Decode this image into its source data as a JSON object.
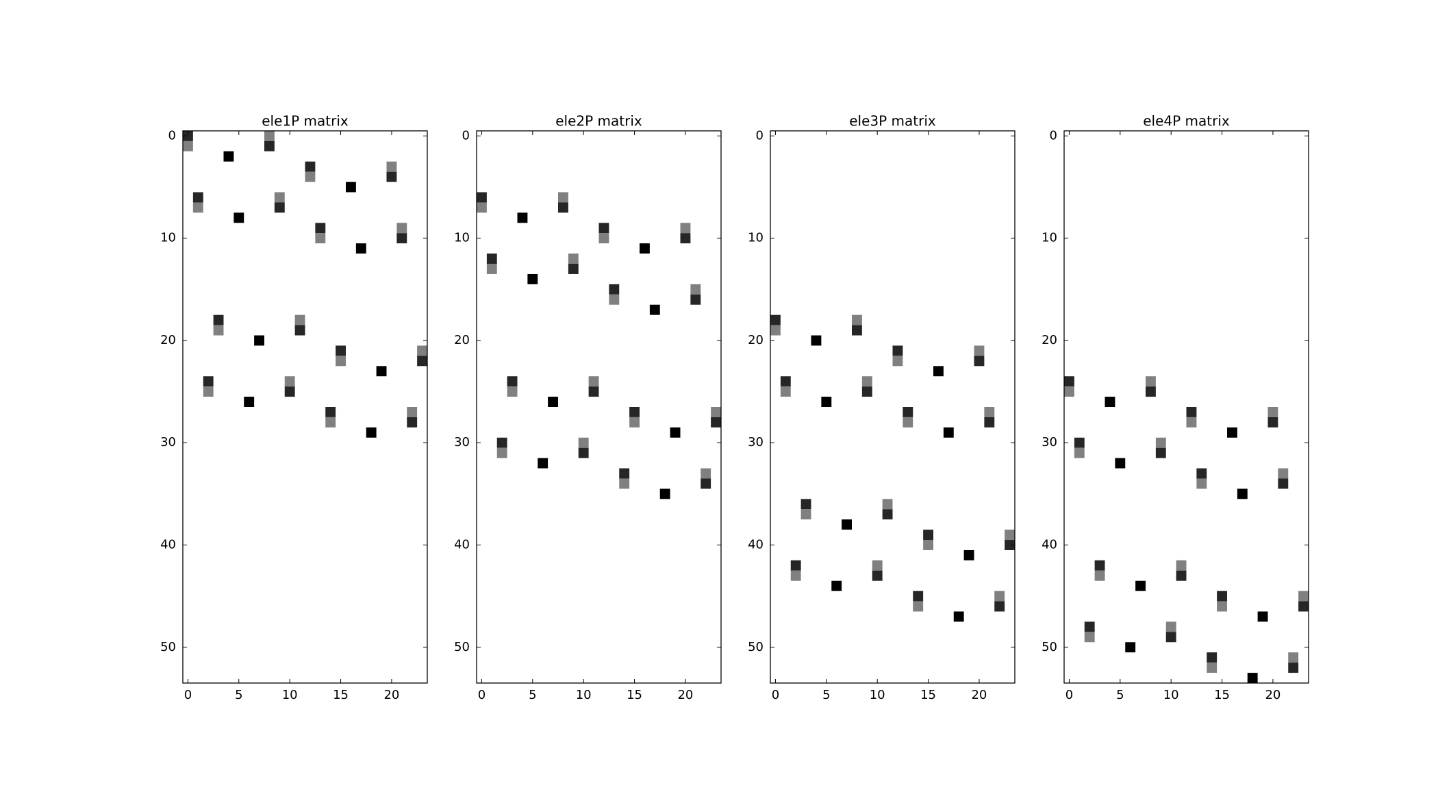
{
  "chart_data": [
    {
      "type": "heatmap",
      "title": "ele1P matrix",
      "colormap": "gray_r",
      "xlim": [
        -0.5,
        23.5
      ],
      "ylim": [
        53.5,
        -0.5
      ],
      "xticks": [
        0,
        5,
        10,
        15,
        20
      ],
      "yticks": [
        0,
        10,
        20,
        30,
        40,
        50
      ],
      "cells": [
        [
          0,
          0,
          0.85
        ],
        [
          0,
          1,
          0.5
        ],
        [
          1,
          6,
          0.85
        ],
        [
          1,
          7,
          0.5
        ],
        [
          2,
          24,
          0.85
        ],
        [
          2,
          25,
          0.5
        ],
        [
          3,
          18,
          0.85
        ],
        [
          3,
          19,
          0.5
        ],
        [
          4,
          2,
          1
        ],
        [
          5,
          8,
          1
        ],
        [
          6,
          26,
          1
        ],
        [
          7,
          20,
          1
        ],
        [
          8,
          0,
          0.5
        ],
        [
          8,
          1,
          0.85
        ],
        [
          9,
          6,
          0.5
        ],
        [
          9,
          7,
          0.85
        ],
        [
          10,
          24,
          0.5
        ],
        [
          10,
          25,
          0.85
        ],
        [
          11,
          18,
          0.5
        ],
        [
          11,
          19,
          0.85
        ],
        [
          12,
          3,
          0.85
        ],
        [
          12,
          4,
          0.5
        ],
        [
          13,
          9,
          0.85
        ],
        [
          13,
          10,
          0.5
        ],
        [
          14,
          27,
          0.85
        ],
        [
          14,
          28,
          0.5
        ],
        [
          15,
          21,
          0.85
        ],
        [
          15,
          22,
          0.5
        ],
        [
          16,
          5,
          1
        ],
        [
          17,
          11,
          1
        ],
        [
          18,
          29,
          1
        ],
        [
          19,
          23,
          1
        ],
        [
          20,
          3,
          0.5
        ],
        [
          20,
          4,
          0.85
        ],
        [
          21,
          9,
          0.5
        ],
        [
          21,
          10,
          0.85
        ],
        [
          22,
          27,
          0.5
        ],
        [
          22,
          28,
          0.85
        ],
        [
          23,
          21,
          0.5
        ],
        [
          23,
          22,
          0.85
        ]
      ]
    },
    {
      "type": "heatmap",
      "title": "ele2P matrix",
      "colormap": "gray_r",
      "xlim": [
        -0.5,
        23.5
      ],
      "ylim": [
        53.5,
        -0.5
      ],
      "xticks": [
        0,
        5,
        10,
        15,
        20
      ],
      "yticks": [
        0,
        10,
        20,
        30,
        40,
        50
      ],
      "cells": [
        [
          0,
          6,
          0.85
        ],
        [
          0,
          7,
          0.5
        ],
        [
          1,
          12,
          0.85
        ],
        [
          1,
          13,
          0.5
        ],
        [
          2,
          30,
          0.85
        ],
        [
          2,
          31,
          0.5
        ],
        [
          3,
          24,
          0.85
        ],
        [
          3,
          25,
          0.5
        ],
        [
          4,
          8,
          1
        ],
        [
          5,
          14,
          1
        ],
        [
          6,
          32,
          1
        ],
        [
          7,
          26,
          1
        ],
        [
          8,
          6,
          0.5
        ],
        [
          8,
          7,
          0.85
        ],
        [
          9,
          12,
          0.5
        ],
        [
          9,
          13,
          0.85
        ],
        [
          10,
          30,
          0.5
        ],
        [
          10,
          31,
          0.85
        ],
        [
          11,
          24,
          0.5
        ],
        [
          11,
          25,
          0.85
        ],
        [
          12,
          9,
          0.85
        ],
        [
          12,
          10,
          0.5
        ],
        [
          13,
          15,
          0.85
        ],
        [
          13,
          16,
          0.5
        ],
        [
          14,
          33,
          0.85
        ],
        [
          14,
          34,
          0.5
        ],
        [
          15,
          27,
          0.85
        ],
        [
          15,
          28,
          0.5
        ],
        [
          16,
          11,
          1
        ],
        [
          17,
          17,
          1
        ],
        [
          18,
          35,
          1
        ],
        [
          19,
          29,
          1
        ],
        [
          20,
          9,
          0.5
        ],
        [
          20,
          10,
          0.85
        ],
        [
          21,
          15,
          0.5
        ],
        [
          21,
          16,
          0.85
        ],
        [
          22,
          33,
          0.5
        ],
        [
          22,
          34,
          0.85
        ],
        [
          23,
          27,
          0.5
        ],
        [
          23,
          28,
          0.85
        ]
      ]
    },
    {
      "type": "heatmap",
      "title": "ele3P matrix",
      "colormap": "gray_r",
      "xlim": [
        -0.5,
        23.5
      ],
      "ylim": [
        53.5,
        -0.5
      ],
      "xticks": [
        0,
        5,
        10,
        15,
        20
      ],
      "yticks": [
        0,
        10,
        20,
        30,
        40,
        50
      ],
      "cells": [
        [
          0,
          18,
          0.85
        ],
        [
          0,
          19,
          0.5
        ],
        [
          1,
          24,
          0.85
        ],
        [
          1,
          25,
          0.5
        ],
        [
          2,
          42,
          0.85
        ],
        [
          2,
          43,
          0.5
        ],
        [
          3,
          36,
          0.85
        ],
        [
          3,
          37,
          0.5
        ],
        [
          4,
          20,
          1
        ],
        [
          5,
          26,
          1
        ],
        [
          6,
          44,
          1
        ],
        [
          7,
          38,
          1
        ],
        [
          8,
          18,
          0.5
        ],
        [
          8,
          19,
          0.85
        ],
        [
          9,
          24,
          0.5
        ],
        [
          9,
          25,
          0.85
        ],
        [
          10,
          42,
          0.5
        ],
        [
          10,
          43,
          0.85
        ],
        [
          11,
          36,
          0.5
        ],
        [
          11,
          37,
          0.85
        ],
        [
          12,
          21,
          0.85
        ],
        [
          12,
          22,
          0.5
        ],
        [
          13,
          27,
          0.85
        ],
        [
          13,
          28,
          0.5
        ],
        [
          14,
          45,
          0.85
        ],
        [
          14,
          46,
          0.5
        ],
        [
          15,
          39,
          0.85
        ],
        [
          15,
          40,
          0.5
        ],
        [
          16,
          23,
          1
        ],
        [
          17,
          29,
          1
        ],
        [
          18,
          47,
          1
        ],
        [
          19,
          41,
          1
        ],
        [
          20,
          21,
          0.5
        ],
        [
          20,
          22,
          0.85
        ],
        [
          21,
          27,
          0.5
        ],
        [
          21,
          28,
          0.85
        ],
        [
          22,
          45,
          0.5
        ],
        [
          22,
          46,
          0.85
        ],
        [
          23,
          39,
          0.5
        ],
        [
          23,
          40,
          0.85
        ]
      ]
    },
    {
      "type": "heatmap",
      "title": "ele4P matrix",
      "colormap": "gray_r",
      "xlim": [
        -0.5,
        23.5
      ],
      "ylim": [
        53.5,
        -0.5
      ],
      "xticks": [
        0,
        5,
        10,
        15,
        20
      ],
      "yticks": [
        0,
        10,
        20,
        30,
        40,
        50
      ],
      "cells": [
        [
          0,
          24,
          0.85
        ],
        [
          0,
          25,
          0.5
        ],
        [
          1,
          30,
          0.85
        ],
        [
          1,
          31,
          0.5
        ],
        [
          2,
          48,
          0.85
        ],
        [
          2,
          49,
          0.5
        ],
        [
          3,
          42,
          0.85
        ],
        [
          3,
          43,
          0.5
        ],
        [
          4,
          26,
          1
        ],
        [
          5,
          32,
          1
        ],
        [
          6,
          50,
          1
        ],
        [
          7,
          44,
          1
        ],
        [
          8,
          24,
          0.5
        ],
        [
          8,
          25,
          0.85
        ],
        [
          9,
          30,
          0.5
        ],
        [
          9,
          31,
          0.85
        ],
        [
          10,
          48,
          0.5
        ],
        [
          10,
          49,
          0.85
        ],
        [
          11,
          42,
          0.5
        ],
        [
          11,
          43,
          0.85
        ],
        [
          12,
          27,
          0.85
        ],
        [
          12,
          28,
          0.5
        ],
        [
          13,
          33,
          0.85
        ],
        [
          13,
          34,
          0.5
        ],
        [
          14,
          51,
          0.85
        ],
        [
          14,
          52,
          0.5
        ],
        [
          15,
          45,
          0.85
        ],
        [
          15,
          46,
          0.5
        ],
        [
          16,
          29,
          1
        ],
        [
          17,
          35,
          1
        ],
        [
          18,
          53,
          1
        ],
        [
          19,
          47,
          1
        ],
        [
          20,
          27,
          0.5
        ],
        [
          20,
          28,
          0.85
        ],
        [
          21,
          33,
          0.5
        ],
        [
          21,
          34,
          0.85
        ],
        [
          22,
          51,
          0.5
        ],
        [
          22,
          52,
          0.85
        ],
        [
          23,
          45,
          0.5
        ],
        [
          23,
          46,
          0.85
        ]
      ]
    }
  ]
}
